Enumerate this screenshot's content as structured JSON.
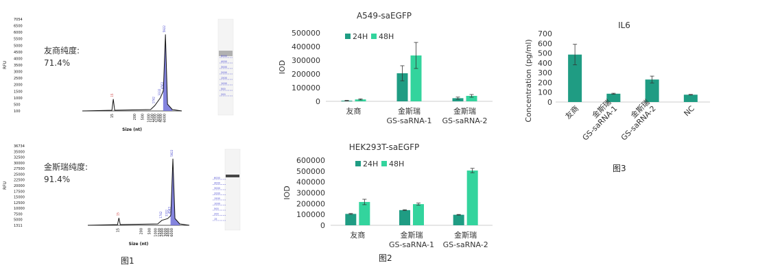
{
  "captions": {
    "fig1": "图1",
    "fig2": "图2",
    "fig3": "图3"
  },
  "colors": {
    "dark": "#1f9c83",
    "light": "#33d49d",
    "trace": "#111111",
    "fill": "#6f6fd8",
    "gel_band": "#333333",
    "marker": "#4a4ad0",
    "small_label": "#cc3333"
  },
  "chart_data": [
    {
      "type": "line",
      "name": "electropherogram-1",
      "ylabel": "RFU",
      "xlabel": "Size (nt)",
      "y_ticks": [
        "7054",
        "6500",
        "6000",
        "5500",
        "5000",
        "4500",
        "4000",
        "3500",
        "3000",
        "2500",
        "2000",
        "1500",
        "1000",
        "500",
        "100"
      ],
      "y_values": [
        7054,
        6500,
        6000,
        5500,
        5000,
        4500,
        4000,
        3500,
        3000,
        2500,
        2000,
        1500,
        1000,
        500,
        100
      ],
      "x_ticks": [
        "15",
        "200",
        "500",
        "1000",
        "1500",
        "2000",
        "3000",
        "4000",
        "6000"
      ],
      "annotation_lines": [
        "友商纯度:",
        "71.4%"
      ],
      "peaks": [
        {
          "label": "15",
          "x": 15,
          "y": 1000
        },
        {
          "label": "1742",
          "x": 1742,
          "y": 500
        },
        {
          "label": "3332",
          "x": 3332,
          "y": 1100
        },
        {
          "label": "4563",
          "x": 4563,
          "y": 1600
        },
        {
          "label": "5922",
          "x": 5922,
          "y": 5900
        }
      ],
      "gel_markers": [
        "6000",
        "4000",
        "3000",
        "2000",
        "1500",
        "1000",
        "500",
        "200"
      ]
    },
    {
      "type": "line",
      "name": "electropherogram-2",
      "ylabel": "RFU",
      "xlabel": "Size (nt)",
      "y_ticks": [
        "36734",
        "35000",
        "32500",
        "30000",
        "27500",
        "25000",
        "22500",
        "20000",
        "17500",
        "15000",
        "12500",
        "10000",
        "7500",
        "5000",
        "1311"
      ],
      "y_values": [
        36734,
        35000,
        32500,
        30000,
        27500,
        25000,
        22500,
        20000,
        17500,
        15000,
        12500,
        10000,
        7500,
        5000,
        1311
      ],
      "x_ticks": [
        "15",
        "200",
        "500",
        "1000",
        "1500",
        "2000",
        "3000",
        "4000",
        "6000"
      ],
      "annotation_lines": [
        "金斯瑞纯度:",
        "91.4%"
      ],
      "peaks": [
        {
          "label": "15",
          "x": 15,
          "y": 4600
        },
        {
          "label": "1742",
          "x": 1742,
          "y": 3500
        },
        {
          "label": "3332",
          "x": 3332,
          "y": 4300
        },
        {
          "label": "4563",
          "x": 4563,
          "y": 5500
        },
        {
          "label": "5922",
          "x": 5922,
          "y": 31000
        }
      ],
      "gel_markers": [
        "6000",
        "4000",
        "3000",
        "2000",
        "1500",
        "1000",
        "500",
        "200",
        "15"
      ]
    },
    {
      "type": "bar",
      "name": "A549-saEGFP",
      "title": "A549-saEGFP",
      "ylabel": "IOD",
      "ylim": [
        0,
        500000
      ],
      "y_ticks": [
        "500000",
        "400000",
        "300000",
        "200000",
        "100000",
        "0"
      ],
      "categories": [
        "友商",
        "金斯瑞\nGS-saRNA-1",
        "金斯瑞\nGS-saRNA-2"
      ],
      "series": [
        {
          "name": "24H",
          "values": [
            5000,
            205000,
            23000
          ],
          "errors": [
            2000,
            55000,
            8000
          ]
        },
        {
          "name": "48H",
          "values": [
            14000,
            335000,
            40000
          ],
          "errors": [
            4000,
            95000,
            10000
          ]
        }
      ]
    },
    {
      "type": "bar",
      "name": "HEK293T-saEGFP",
      "title": "HEK293T-saEGFP",
      "ylabel": "IOD",
      "ylim": [
        0,
        600000
      ],
      "y_ticks": [
        "600000",
        "500000",
        "400000",
        "300000",
        "200000",
        "100000",
        "0"
      ],
      "categories": [
        "友商",
        "金斯瑞\nGS-saRNA-1",
        "金斯瑞\nGS-saRNA-2"
      ],
      "series": [
        {
          "name": "24H",
          "values": [
            105000,
            140000,
            97000
          ],
          "errors": [
            4000,
            4000,
            3000
          ]
        },
        {
          "name": "48H",
          "values": [
            215000,
            195000,
            505000
          ],
          "errors": [
            25000,
            10000,
            20000
          ]
        }
      ]
    },
    {
      "type": "bar",
      "name": "IL6",
      "title": "IL6",
      "ylabel": "Concentration (pg/ml)",
      "ylim": [
        0,
        700
      ],
      "y_ticks": [
        "700",
        "600",
        "500",
        "400",
        "300",
        "200",
        "100",
        "0"
      ],
      "categories": [
        "友商",
        "金斯瑞\nGS-saRNA-1",
        "金斯瑞\nGS-saRNA-2",
        "NC"
      ],
      "values": [
        485,
        85,
        230,
        75
      ],
      "errors": [
        105,
        5,
        35,
        3
      ]
    }
  ]
}
